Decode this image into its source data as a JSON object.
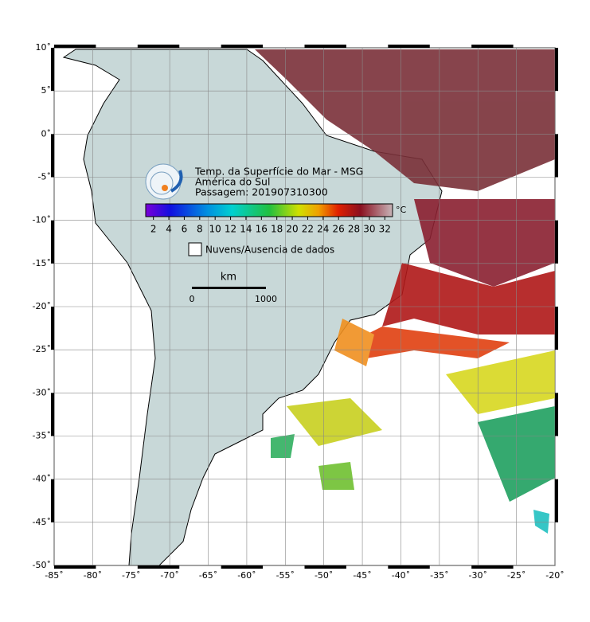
{
  "header": {
    "title": "Temp. da Superfície do Mar - MSG",
    "region": "América do Sul",
    "pass": "Passagem: 201907310300"
  },
  "colorbar": {
    "range": [
      1,
      33
    ],
    "ticks": [
      2,
      4,
      6,
      8,
      10,
      12,
      14,
      16,
      18,
      20,
      22,
      24,
      26,
      28,
      30,
      32
    ],
    "unit": "°C"
  },
  "legend": {
    "clouds": "Nuvens/Ausencia de dados"
  },
  "scale_bar": {
    "unit": "km",
    "start": 0,
    "end": 1000
  },
  "map": {
    "xlim": [
      -85,
      -20
    ],
    "ylim": [
      -50,
      10
    ],
    "xticks": [
      {
        "value": -85,
        "label": "-85˚"
      },
      {
        "value": -80,
        "label": "-80˚"
      },
      {
        "value": -75,
        "label": "-75˚"
      },
      {
        "value": -70,
        "label": "-70˚"
      },
      {
        "value": -65,
        "label": "-65˚"
      },
      {
        "value": -60,
        "label": "-60˚"
      },
      {
        "value": -55,
        "label": "-55˚"
      },
      {
        "value": -50,
        "label": "-50˚"
      },
      {
        "value": -45,
        "label": "-45˚"
      },
      {
        "value": -40,
        "label": "-40˚"
      },
      {
        "value": -35,
        "label": "-35˚"
      },
      {
        "value": -30,
        "label": "-30˚"
      },
      {
        "value": -25,
        "label": "-25˚"
      },
      {
        "value": -20,
        "label": "-20˚"
      }
    ],
    "yticks": [
      {
        "value": 10,
        "label": "10˚"
      },
      {
        "value": 5,
        "label": "5˚"
      },
      {
        "value": 0,
        "label": "0˚"
      },
      {
        "value": -5,
        "label": "-5˚"
      },
      {
        "value": -10,
        "label": "-10˚"
      },
      {
        "value": -15,
        "label": "-15˚"
      },
      {
        "value": -20,
        "label": "-20˚"
      },
      {
        "value": -25,
        "label": "-25˚"
      },
      {
        "value": -30,
        "label": "-30˚"
      },
      {
        "value": -35,
        "label": "-35˚"
      },
      {
        "value": -40,
        "label": "-40˚"
      },
      {
        "value": -45,
        "label": "-45˚"
      },
      {
        "value": -50,
        "label": "-50˚"
      }
    ]
  }
}
